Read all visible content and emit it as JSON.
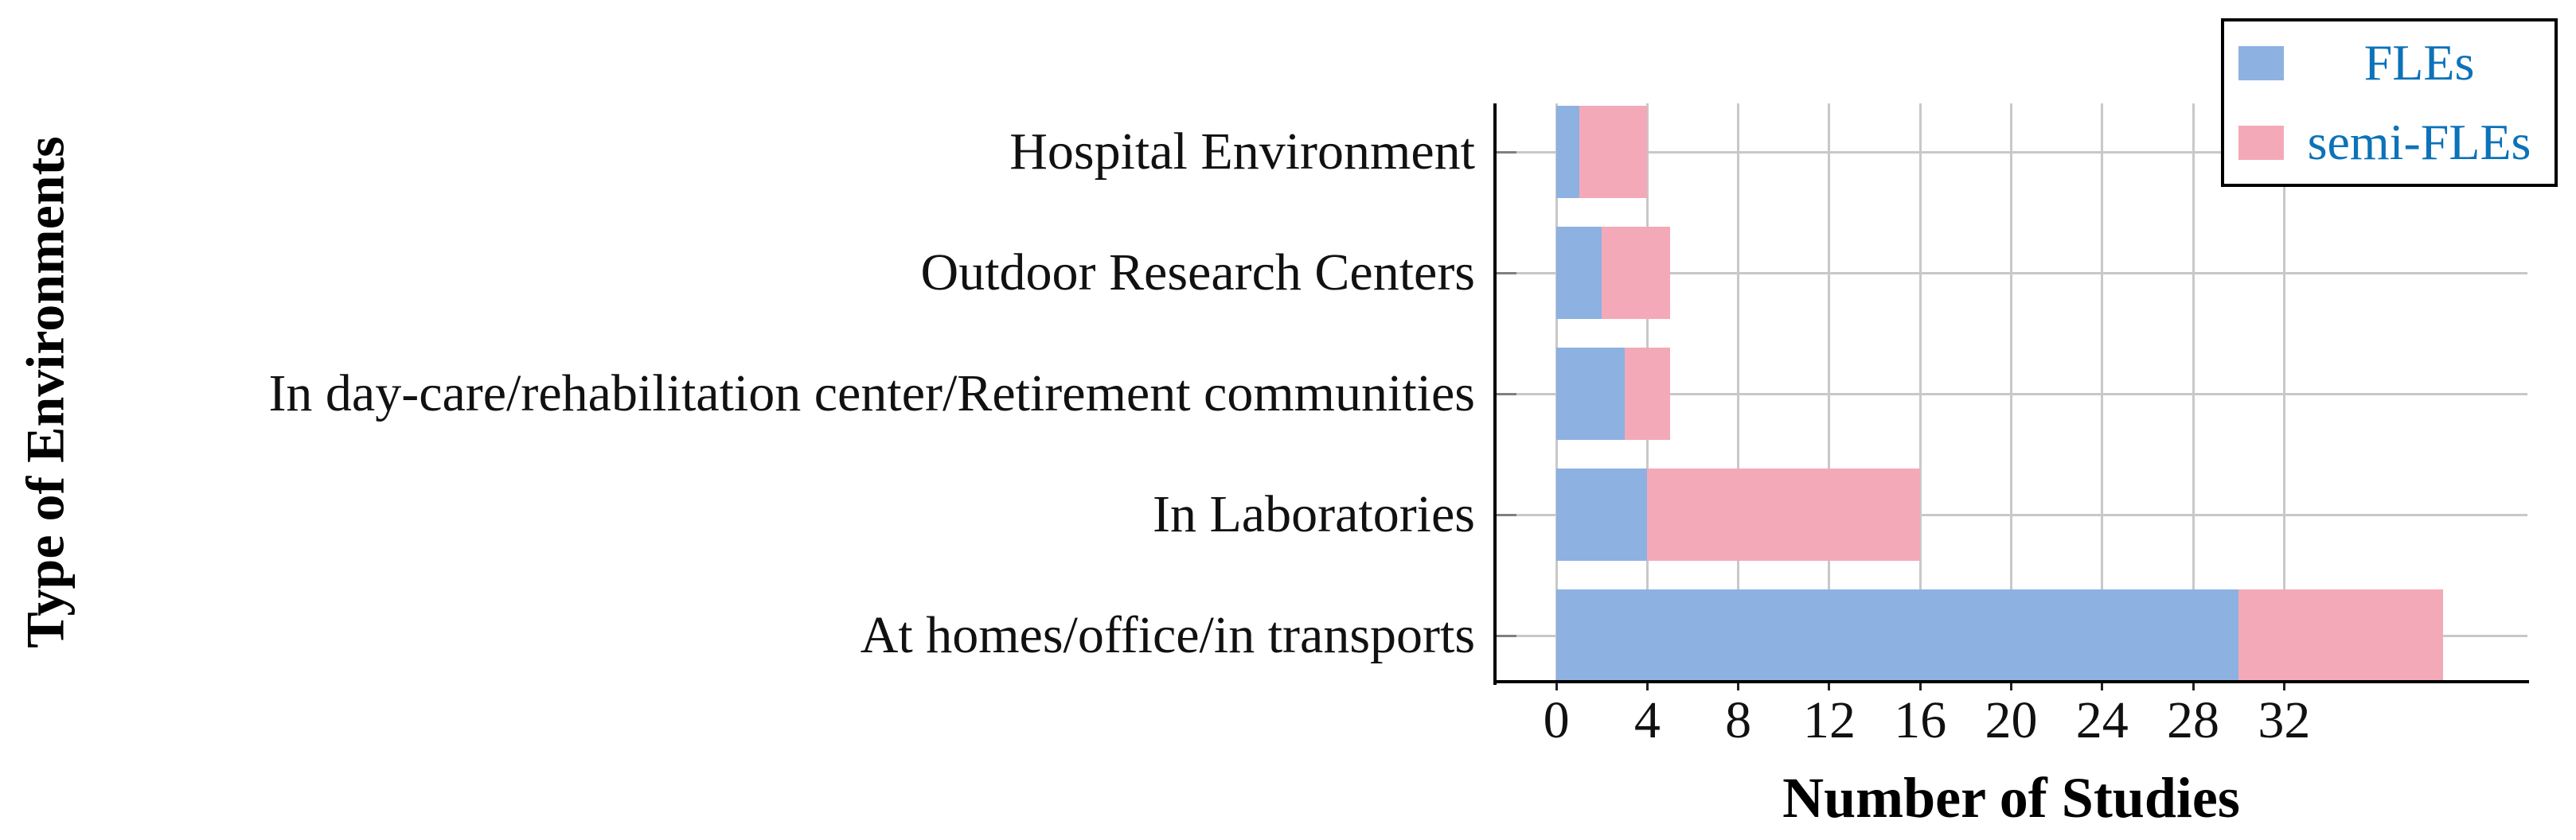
{
  "chart_data": {
    "type": "bar",
    "orientation": "horizontal",
    "stacked": true,
    "title": "",
    "xlabel": "Number of Studies",
    "ylabel": "Type of Environments",
    "categories": [
      "Hospital Environment",
      "Outdoor Research Centers",
      "In day-care/rehabilitation center/Retirement communities",
      "In Laboratories",
      "At homes/office/in transports"
    ],
    "series": [
      {
        "name": "FLEs",
        "color": "#8DB1E1",
        "values": [
          1,
          2,
          3,
          4,
          30
        ]
      },
      {
        "name": "semi-FLEs",
        "color": "#F4A9B8",
        "values": [
          3,
          3,
          2,
          12,
          9
        ]
      }
    ],
    "totals": [
      4,
      5,
      5,
      16,
      39
    ],
    "xticks": [
      "0",
      "4",
      "8",
      "12",
      "16",
      "20",
      "24",
      "28",
      "32"
    ],
    "xtick_values": [
      0,
      4,
      8,
      12,
      16,
      20,
      24,
      28,
      32
    ],
    "xlim": [
      -2.7,
      42.7
    ],
    "grid": true,
    "legend": {
      "position": "top-right",
      "entries": [
        "FLEs",
        "semi-FLEs"
      ],
      "text_color": "#0D72B8"
    }
  },
  "style": {
    "grid_color": "#C8C8C8",
    "axis_color": "#000000",
    "ytick_color": "#7F7F7F",
    "text_color": "#111111"
  }
}
